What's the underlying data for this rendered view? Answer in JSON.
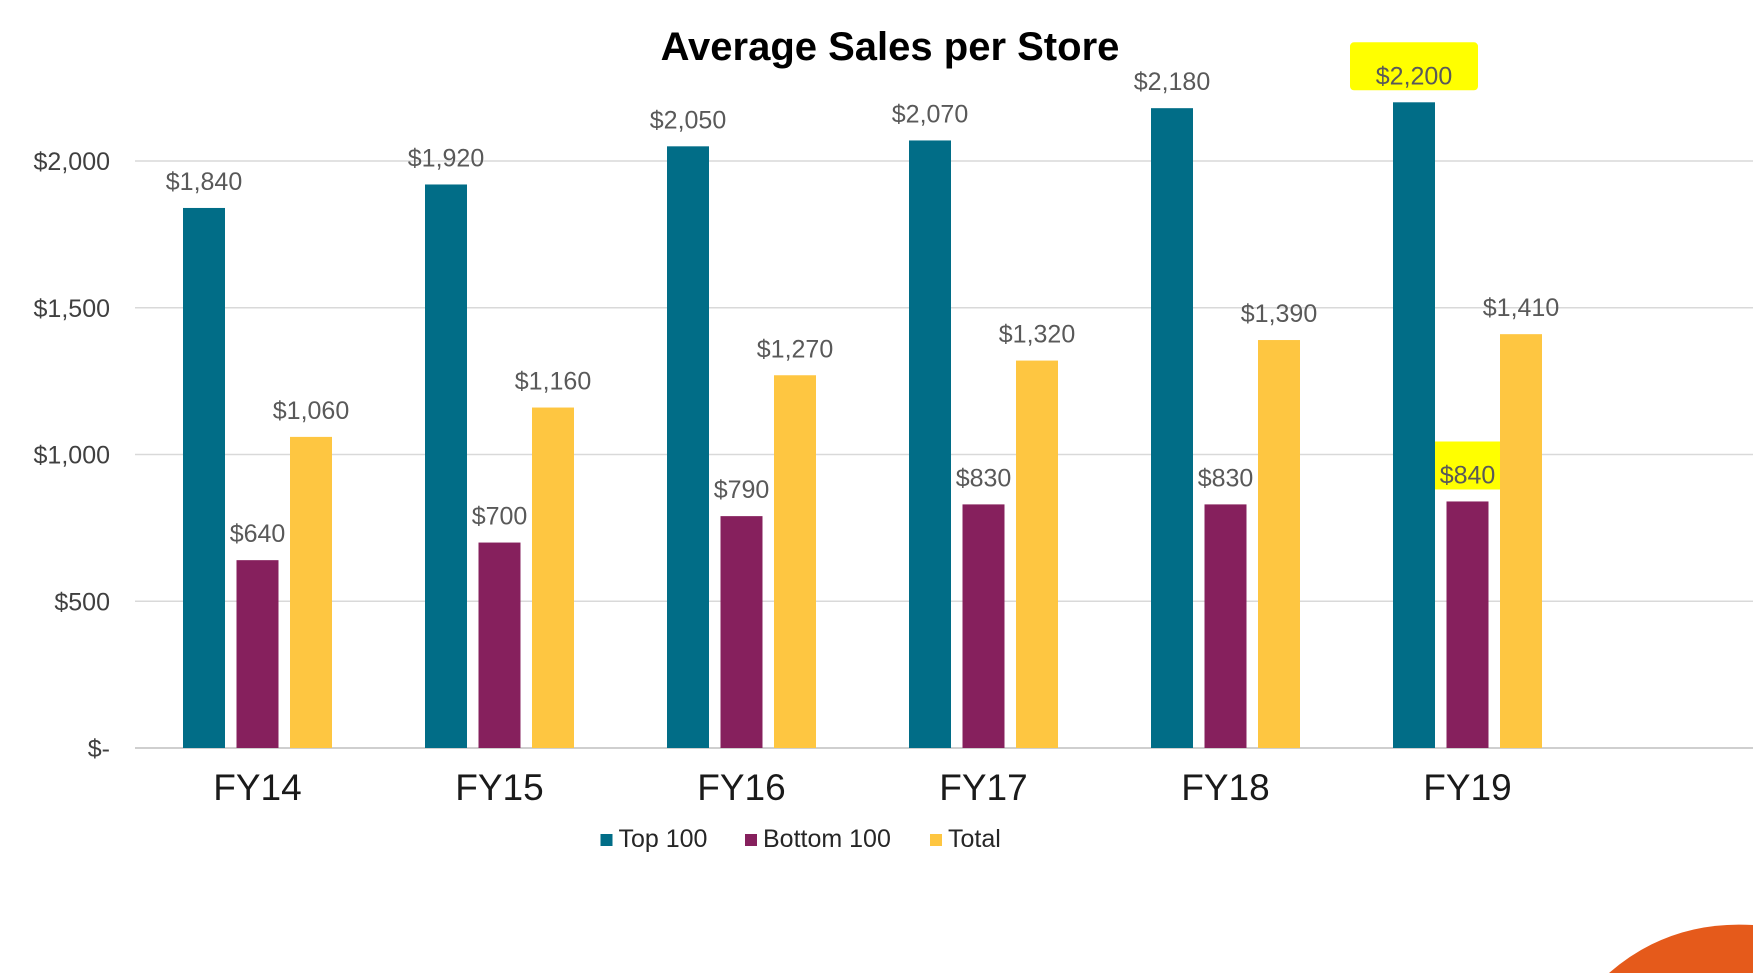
{
  "chart_data": {
    "type": "bar",
    "title": "Average Sales per Store",
    "categories": [
      "FY14",
      "FY15",
      "FY16",
      "FY17",
      "FY18",
      "FY19"
    ],
    "series": [
      {
        "name": "Top 100",
        "color": "#016d87",
        "values": [
          1840,
          1920,
          2050,
          2070,
          2180,
          2200
        ],
        "labels": [
          "$1,840",
          "$1,920",
          "$2,050",
          "$2,070",
          "$2,180",
          "$2,200"
        ]
      },
      {
        "name": "Bottom 100",
        "color": "#86205d",
        "values": [
          640,
          700,
          790,
          830,
          830,
          840
        ],
        "labels": [
          "$640",
          "$700",
          "$790",
          "$830",
          "$830",
          "$840"
        ]
      },
      {
        "name": "Total",
        "color": "#fec641",
        "values": [
          1060,
          1160,
          1270,
          1320,
          1390,
          1410
        ],
        "labels": [
          "$1,060",
          "$1,160",
          "$1,270",
          "$1,320",
          "$1,390",
          "$1,410"
        ]
      }
    ],
    "ylim": [
      0,
      2000
    ],
    "yticks": [
      0,
      500,
      1000,
      1500,
      2000
    ],
    "ytick_labels": [
      "$-",
      "$500",
      "$1,000",
      "$1,500",
      "$2,000"
    ],
    "xlabel": "",
    "ylabel": "",
    "grid": true,
    "legend": "bottom-center",
    "highlights": [
      {
        "series": "Top 100",
        "category": "FY19",
        "color": "#ffff00"
      },
      {
        "series": "Bottom 100",
        "category": "FY19",
        "color": "#ffff00"
      }
    ]
  },
  "decoration": {
    "corner_shape_color": "#e55a1b"
  }
}
